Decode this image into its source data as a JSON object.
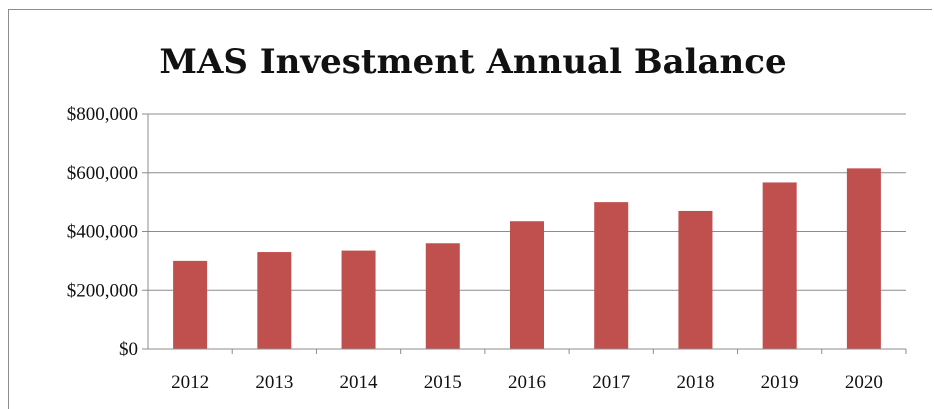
{
  "chart_data": {
    "type": "bar",
    "title": "MAS Investment Annual Balance",
    "xlabel": "",
    "ylabel": "",
    "categories": [
      "2012",
      "2013",
      "2014",
      "2015",
      "2016",
      "2017",
      "2018",
      "2019",
      "2020"
    ],
    "series": [
      {
        "values": [
          300000,
          330000,
          335000,
          360000,
          435000,
          500000,
          470000,
          567000,
          615000
        ]
      }
    ],
    "ylim": [
      0,
      800000
    ],
    "yticks": [
      0,
      200000,
      400000,
      600000,
      800000
    ],
    "ytick_labels": [
      "$0",
      "$200,000",
      "$400,000",
      "$600,000",
      "$800,000"
    ],
    "grid": true,
    "legend": "none",
    "bar_color": "#c0504d"
  }
}
